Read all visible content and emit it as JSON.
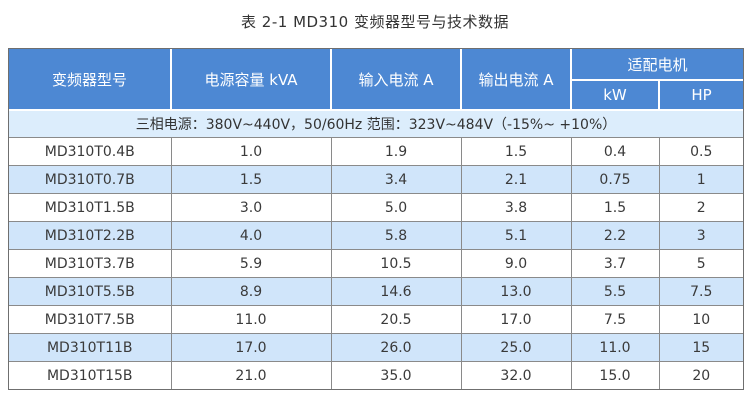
{
  "page": {
    "title": "表 2-1 MD310 变频器型号与技术数据"
  },
  "colors": {
    "header_bg": "#4d88d3",
    "header_text": "#ffffff",
    "stripe_bg": "#d0e5fa",
    "note_bg": "#dcedfc",
    "border": "#8a8a8a",
    "text": "#3a3a3a"
  },
  "table": {
    "columns": [
      "变频器型号",
      "电源容量 kVA",
      "输入电流 A",
      "输出电流 A"
    ],
    "motor_group": {
      "label": "适配电机",
      "subcolumns": [
        "kW",
        "HP"
      ]
    },
    "power_note": "三相电源：380V~440V，50/60Hz 范围：323V~484V（-15%~ +10%）",
    "rows": [
      [
        "MD310T0.4B",
        "1.0",
        "1.9",
        "1.5",
        "0.4",
        "0.5"
      ],
      [
        "MD310T0.7B",
        "1.5",
        "3.4",
        "2.1",
        "0.75",
        "1"
      ],
      [
        "MD310T1.5B",
        "3.0",
        "5.0",
        "3.8",
        "1.5",
        "2"
      ],
      [
        "MD310T2.2B",
        "4.0",
        "5.8",
        "5.1",
        "2.2",
        "3"
      ],
      [
        "MD310T3.7B",
        "5.9",
        "10.5",
        "9.0",
        "3.7",
        "5"
      ],
      [
        "MD310T5.5B",
        "8.9",
        "14.6",
        "13.0",
        "5.5",
        "7.5"
      ],
      [
        "MD310T7.5B",
        "11.0",
        "20.5",
        "17.0",
        "7.5",
        "10"
      ],
      [
        "MD310T11B",
        "17.0",
        "26.0",
        "25.0",
        "11.0",
        "15"
      ],
      [
        "MD310T15B",
        "21.0",
        "35.0",
        "32.0",
        "15.0",
        "20"
      ]
    ]
  }
}
